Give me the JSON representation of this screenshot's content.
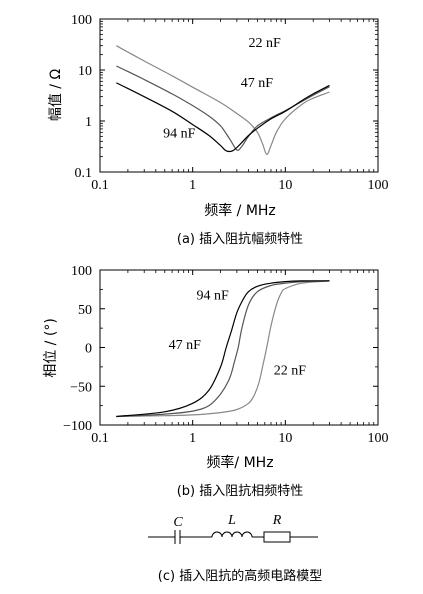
{
  "chart_data": [
    {
      "type": "line",
      "caption": "(a)  插入阻抗幅频特性",
      "xlabel": "频率 / MHz",
      "ylabel": "幅值 / Ω",
      "xscale": "log",
      "yscale": "log",
      "xlim": [
        0.1,
        100
      ],
      "ylim": [
        0.1,
        100
      ],
      "xticks": [
        "0.1",
        "1",
        "10",
        "100"
      ],
      "yticks": [
        "100",
        "10",
        "1",
        "0.1"
      ],
      "series": [
        {
          "name": "22 nF",
          "color": "#888888",
          "x": [
            0.15,
            0.3,
            0.6,
            1,
            2,
            3,
            4,
            5,
            5.7,
            6.3,
            7,
            8,
            10,
            15,
            20,
            30
          ],
          "y": [
            30,
            15,
            7.7,
            4.6,
            2.3,
            1.4,
            0.95,
            0.6,
            0.35,
            0.22,
            0.33,
            0.6,
            1.1,
            2.1,
            2.8,
            3.7
          ]
        },
        {
          "name": "47 nF",
          "color": "#555555",
          "x": [
            0.15,
            0.3,
            0.6,
            1,
            1.5,
            2,
            2.5,
            3.0,
            3.4,
            4,
            5,
            7,
            10,
            15,
            20,
            30
          ],
          "y": [
            12,
            6.5,
            3.4,
            2.0,
            1.25,
            0.8,
            0.45,
            0.27,
            0.32,
            0.5,
            0.8,
            1.15,
            1.6,
            2.4,
            3.2,
            4.7
          ]
        },
        {
          "name": "94 nF",
          "color": "#000000",
          "x": [
            0.15,
            0.3,
            0.6,
            1,
            1.5,
            2.0,
            2.3,
            2.7,
            3.2,
            4,
            5,
            7,
            10,
            15,
            20,
            30
          ],
          "y": [
            5.6,
            3.0,
            1.55,
            0.85,
            0.52,
            0.33,
            0.26,
            0.26,
            0.34,
            0.52,
            0.72,
            1.1,
            1.55,
            2.5,
            3.4,
            5.0
          ]
        }
      ],
      "annotations": [
        {
          "text": "22 nF",
          "x": 4.0,
          "y": 28
        },
        {
          "text": "47 nF",
          "x": 3.3,
          "y": 4.6
        },
        {
          "text": "94 nF",
          "x": 0.48,
          "y": 0.48
        }
      ]
    },
    {
      "type": "line",
      "caption": "(b)  插入阻抗相频特性",
      "xlabel": "频率/ MHz",
      "ylabel": "相位 / (°)",
      "xscale": "log",
      "xlim": [
        0.1,
        100
      ],
      "ylim": [
        -100,
        100
      ],
      "xticks": [
        "0.1",
        "1",
        "10",
        "100"
      ],
      "yticks": [
        "100",
        "50",
        "0",
        "−50",
        "−100"
      ],
      "series": [
        {
          "name": "22 nF",
          "color": "#888888",
          "x": [
            0.15,
            0.5,
            1,
            2,
            3,
            4,
            4.6,
            5.2,
            5.8,
            6.3,
            7,
            8,
            9,
            10,
            15,
            30
          ],
          "y": [
            -89,
            -88,
            -87,
            -84,
            -80,
            -72,
            -62,
            -45,
            -20,
            0,
            28,
            55,
            70,
            76,
            83,
            86
          ]
        },
        {
          "name": "47 nF",
          "color": "#555555",
          "x": [
            0.15,
            0.5,
            1,
            1.5,
            2,
            2.5,
            2.8,
            3.1,
            3.4,
            4,
            5,
            7,
            10,
            15,
            30
          ],
          "y": [
            -89,
            -86,
            -82,
            -75,
            -60,
            -40,
            -20,
            0,
            25,
            55,
            72,
            80,
            83,
            85,
            86
          ]
        },
        {
          "name": "94 nF",
          "color": "#000000",
          "x": [
            0.15,
            0.5,
            1,
            1.5,
            2,
            2.3,
            2.6,
            3,
            3.5,
            4,
            5,
            7,
            10,
            15,
            30
          ],
          "y": [
            -89,
            -83,
            -72,
            -55,
            -25,
            0,
            20,
            45,
            62,
            72,
            79,
            83,
            85,
            86,
            86
          ]
        }
      ],
      "annotations": [
        {
          "text": "94 nF",
          "x": 1.1,
          "y": 62
        },
        {
          "text": "47 nF",
          "x": 0.55,
          "y": -2
        },
        {
          "text": "22 nF",
          "x": 7.5,
          "y": -35
        }
      ]
    }
  ],
  "circuit": {
    "caption": "(c)  插入阻抗的高频电路模型",
    "labels": [
      "C",
      "L",
      "R"
    ]
  }
}
